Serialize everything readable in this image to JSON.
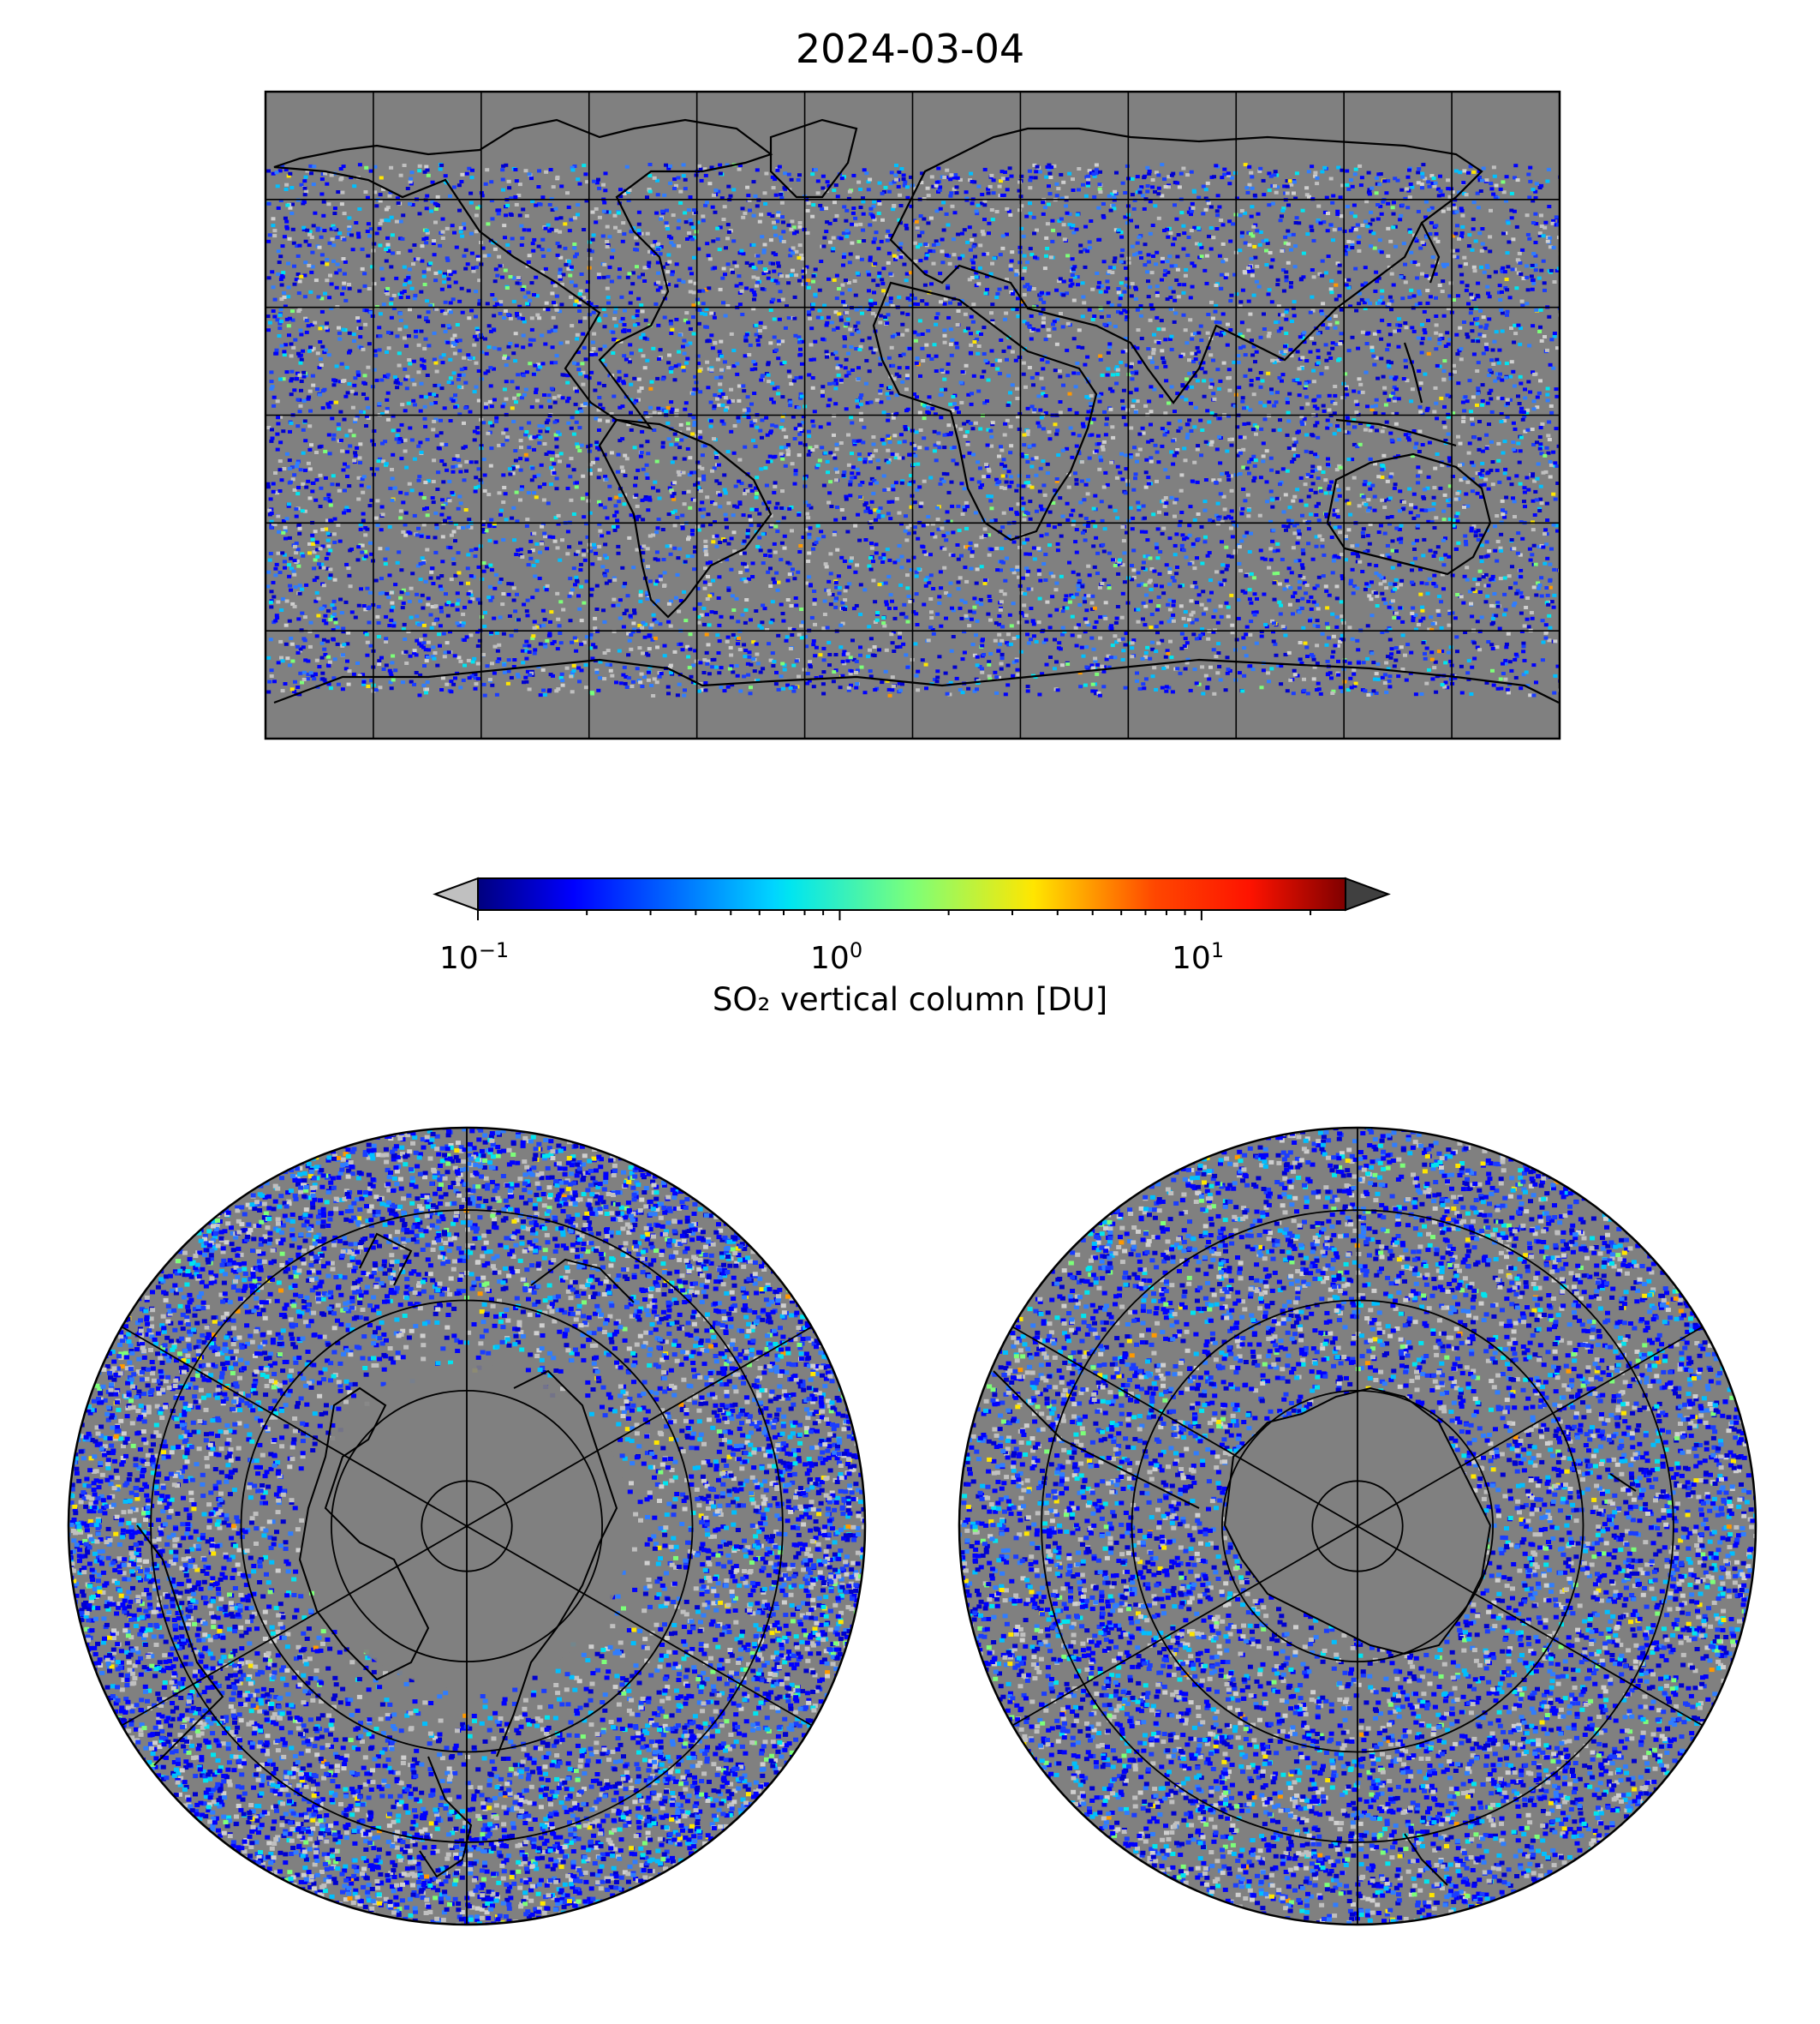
{
  "figure": {
    "title": "2024-03-04"
  },
  "colorbar": {
    "label": "SO₂ vertical column [DU]",
    "scale": "log",
    "range": [
      0.1,
      25
    ],
    "extend": "both",
    "colormap": "jet",
    "under_color": "#c0c0c0",
    "over_color": "#404040",
    "ticks": [
      {
        "value": 0.1,
        "base": "10",
        "exponent": "−1"
      },
      {
        "value": 1,
        "base": "10",
        "exponent": "0"
      },
      {
        "value": 10,
        "base": "10",
        "exponent": "1"
      }
    ]
  },
  "maps": {
    "global": {
      "projection": "equirectangular",
      "lon_range": [
        -180,
        180
      ],
      "lat_range": [
        -90,
        90
      ],
      "grid_lon_step": 30,
      "grid_lat_step": 30,
      "nodata_color": "#808080"
    },
    "north_polar": {
      "projection": "north-polar-stereographic",
      "lat_circles": [
        80,
        60,
        40,
        20
      ],
      "meridian_step": 60
    },
    "south_polar": {
      "projection": "south-polar-stereographic",
      "lat_circles": [
        -80,
        -60,
        -40,
        -20
      ],
      "meridian_step": 60
    }
  }
}
